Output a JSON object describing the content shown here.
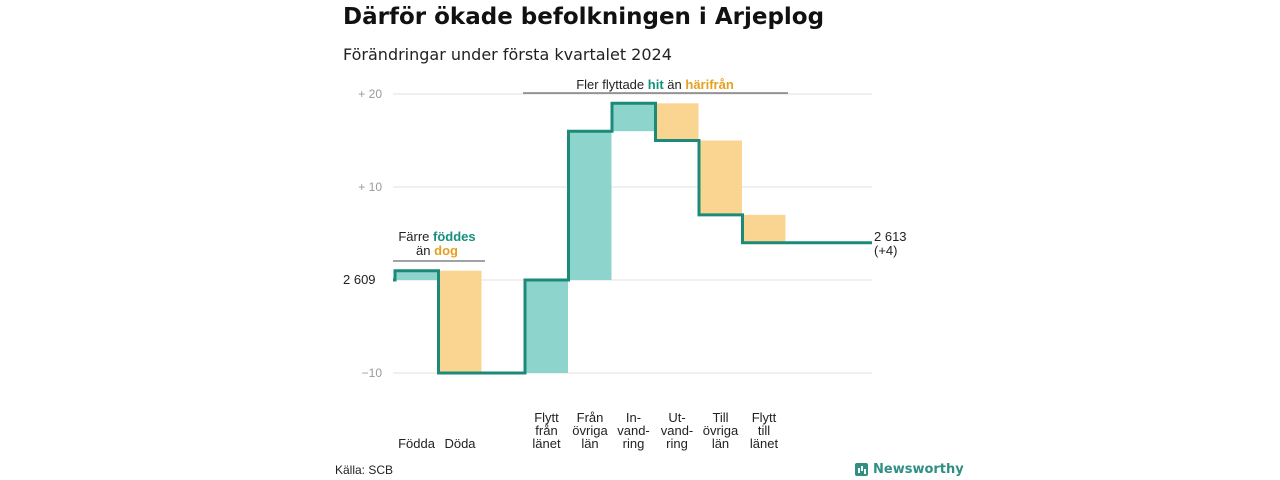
{
  "title": "Därför ökade befolkningen i Arjeplog",
  "subtitle": "Förändringar under första kvartalet 2024",
  "source": "Källa: SCB",
  "brand": "Newsworthy",
  "colors": {
    "increase": "#8dd5cc",
    "decrease": "#fad591",
    "line": "#1c8a78",
    "teal_text": "#14907e",
    "orange_text": "#e6a020",
    "grid": "#e0e0e0",
    "tick": "#999999"
  },
  "annotations": {
    "left": {
      "line1_prefix": "Färre",
      "line1_highlight": "föddes",
      "line2_prefix": "än",
      "line2_highlight": "dog"
    },
    "right": {
      "prefix": "Fler flyttade",
      "hit": "hit",
      "middle": "än",
      "harifran": "härifrån"
    }
  },
  "chart_data": {
    "type": "waterfall",
    "start_value": 2609,
    "start_label": "2 609",
    "end_label": "2 613",
    "end_change_label": "(+4)",
    "yticks": [
      {
        "value": 20,
        "label": "+ 20"
      },
      {
        "value": 10,
        "label": "+ 10"
      },
      {
        "value": -10,
        "label": "−10"
      }
    ],
    "ylim": [
      -10,
      20
    ],
    "steps": [
      {
        "category": "Födda",
        "change": 1,
        "label_lines": [
          "Födda"
        ]
      },
      {
        "category": "Döda",
        "change": -11,
        "label_lines": [
          "Döda"
        ]
      },
      {
        "category": "Flytt från länet",
        "change": 10,
        "label_lines": [
          "Flytt",
          "från",
          "länet"
        ]
      },
      {
        "category": "Från övriga län",
        "change": 16,
        "label_lines": [
          "Från",
          "övriga",
          "län"
        ]
      },
      {
        "category": "Invandring",
        "change": 3,
        "label_lines": [
          "In-",
          "vand-",
          "ring"
        ]
      },
      {
        "category": "Utvandring",
        "change": -4,
        "label_lines": [
          "Ut-",
          "vand-",
          "ring"
        ]
      },
      {
        "category": "Till övriga län",
        "change": -8,
        "label_lines": [
          "Till",
          "övriga",
          "län"
        ]
      },
      {
        "category": "Flytt till länet",
        "change": -3,
        "label_lines": [
          "Flytt",
          "till",
          "länet"
        ]
      }
    ]
  }
}
